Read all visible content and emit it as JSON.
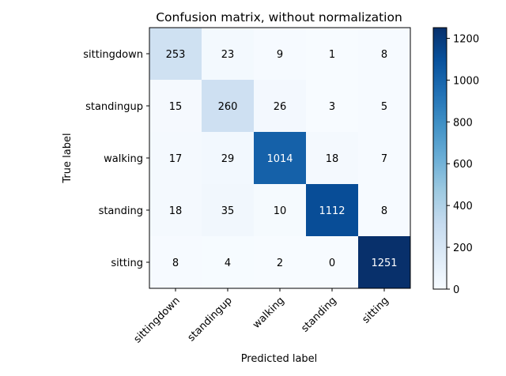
{
  "chart_data": {
    "type": "heatmap",
    "title": "Confusion matrix, without normalization",
    "xlabel": "Predicted label",
    "ylabel": "True label",
    "row_labels": [
      "sittingdown",
      "standingup",
      "walking",
      "standing",
      "sitting"
    ],
    "col_labels": [
      "sittingdown",
      "standingup",
      "walking",
      "standing",
      "sitting"
    ],
    "values": [
      [
        253,
        23,
        9,
        1,
        8
      ],
      [
        15,
        260,
        26,
        3,
        5
      ],
      [
        17,
        29,
        1014,
        18,
        7
      ],
      [
        18,
        35,
        10,
        1112,
        8
      ],
      [
        8,
        4,
        2,
        0,
        1251
      ]
    ],
    "colormap": "Blues",
    "colorbar": {
      "min": 0,
      "max": 1251,
      "ticks": [
        0,
        200,
        400,
        600,
        800,
        1000,
        1200
      ]
    },
    "text_colors": {
      "light": "#ffffff",
      "dark": "#000000"
    }
  }
}
